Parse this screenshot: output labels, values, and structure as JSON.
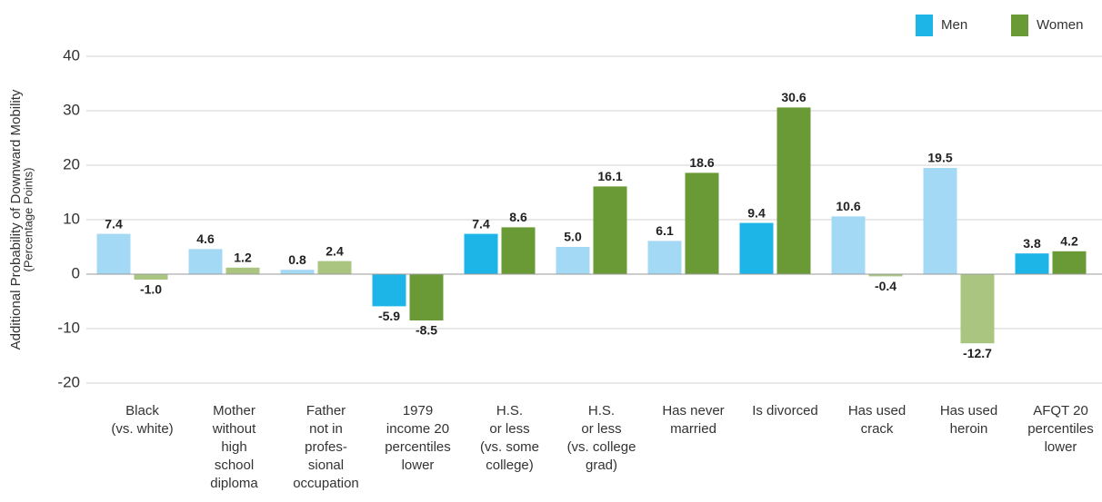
{
  "chart_data": {
    "type": "bar",
    "y_axis_label": [
      "Additional Probability of Downward Mobility",
      "(Percentage Points)"
    ],
    "categories": [
      [
        "Black",
        "(vs. white)"
      ],
      [
        "Mother",
        "without",
        "high",
        "school",
        "diploma"
      ],
      [
        "Father",
        "not in",
        "profes-",
        "sional",
        "occupation"
      ],
      [
        "1979",
        "income 20",
        "percentiles",
        "lower"
      ],
      [
        "H.S.",
        "or less",
        "(vs. some",
        "college)"
      ],
      [
        "H.S.",
        "or less",
        "(vs. college",
        "grad)"
      ],
      [
        "Has never",
        "married"
      ],
      [
        "Is divorced"
      ],
      [
        "Has used",
        "crack"
      ],
      [
        "Has used",
        "heroin"
      ],
      [
        "AFQT 20",
        "percentiles",
        "lower"
      ]
    ],
    "series": [
      {
        "name": "Men",
        "color": "#1db4e8",
        "bar_colors": [
          "#a3d9f5",
          "#a3d9f5",
          "#a3d9f5",
          "#1db4e8",
          "#1db4e8",
          "#a3d9f5",
          "#a3d9f5",
          "#1db4e8",
          "#a3d9f5",
          "#a3d9f5",
          "#1db4e8"
        ],
        "values": [
          7.4,
          4.6,
          0.8,
          -5.9,
          7.4,
          5.0,
          6.1,
          9.4,
          10.6,
          19.5,
          3.8
        ],
        "value_labels": [
          "7.4",
          "4.6",
          "0.8",
          "-5.9",
          "7.4",
          "5.0",
          "6.1",
          "9.4",
          "10.6",
          "19.5",
          "3.8"
        ]
      },
      {
        "name": "Women",
        "color": "#6a9a35",
        "bar_colors": [
          "#a9c580",
          "#a9c580",
          "#a9c580",
          "#6a9a35",
          "#6a9a35",
          "#6a9a35",
          "#6a9a35",
          "#6a9a35",
          "#a9c580",
          "#a9c580",
          "#6a9a35"
        ],
        "values": [
          -1.0,
          1.2,
          2.4,
          -8.5,
          8.6,
          16.1,
          18.6,
          30.6,
          -0.4,
          -12.7,
          4.2
        ],
        "value_labels": [
          "-1.0",
          "1.2",
          "2.4",
          "-8.5",
          "8.6",
          "16.1",
          "18.6",
          "30.6",
          "-0.4",
          "-12.7",
          "4.2"
        ]
      }
    ],
    "ylim": [
      -20,
      40
    ],
    "yticks": [
      -20,
      -10,
      0,
      10,
      20,
      30,
      40
    ],
    "grid": true,
    "legend": "top-right"
  }
}
